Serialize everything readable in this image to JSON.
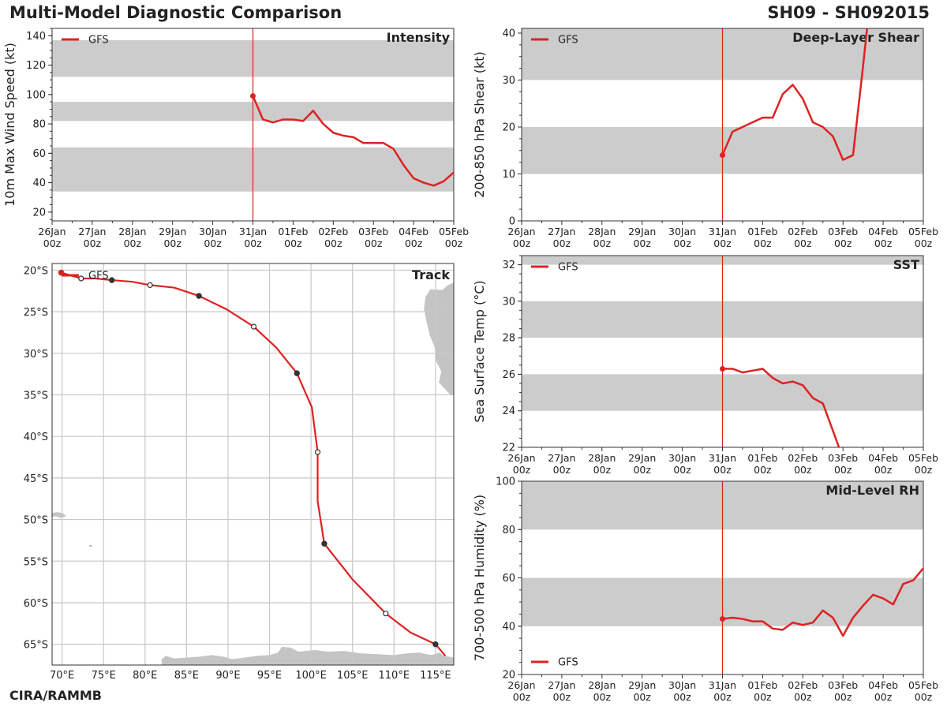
{
  "header": {
    "title": "Multi-Model Diagnostic Comparison",
    "storm_id": "SH09 - SH092015",
    "footer": "CIRA/RAMMB"
  },
  "colors": {
    "gfs": "#dd2222",
    "band": "#cccccc",
    "grid": "#c8c8c8",
    "land": "#c4c4c4",
    "axis": "#333333"
  },
  "time_ticks": [
    "26Jan\n00z",
    "27Jan\n00z",
    "28Jan\n00z",
    "29Jan\n00z",
    "30Jan\n00z",
    "31Jan\n00z",
    "01Feb\n00z",
    "02Feb\n00z",
    "03Feb\n00z",
    "04Feb\n00z",
    "05Feb\n00z"
  ],
  "chart_data": [
    {
      "id": "intensity",
      "type": "line",
      "title": "Intensity",
      "ylabel": "10m Max Wind Speed (kt)",
      "xlim": [
        0,
        10
      ],
      "ylim": [
        14,
        145
      ],
      "yticks": [
        20,
        40,
        60,
        80,
        100,
        120,
        140
      ],
      "bands": [
        [
          34,
          64
        ],
        [
          82,
          95
        ],
        [
          112,
          137
        ]
      ],
      "init_day": 5,
      "legend": "GFS",
      "series": [
        {
          "name": "GFS",
          "x": [
            5,
            5.25,
            5.5,
            5.75,
            6,
            6.25,
            6.5,
            6.75,
            7,
            7.25,
            7.5,
            7.75,
            8,
            8.25,
            8.5,
            8.75,
            9,
            9.25,
            9.5,
            9.75,
            10
          ],
          "y": [
            99,
            83,
            81,
            83,
            83,
            82,
            89,
            80,
            74,
            72,
            71,
            67,
            67,
            67,
            63,
            52,
            43,
            40,
            38,
            41,
            47
          ]
        }
      ]
    },
    {
      "id": "shear",
      "type": "line",
      "title": "Deep-Layer Shear",
      "ylabel": "200-850 hPa Shear (kt)",
      "xlim": [
        0,
        10
      ],
      "ylim": [
        0,
        41
      ],
      "yticks": [
        0,
        10,
        20,
        30,
        40
      ],
      "bands": [
        [
          10,
          20
        ],
        [
          30,
          41
        ]
      ],
      "init_day": 5,
      "legend": "GFS",
      "series": [
        {
          "name": "GFS",
          "x": [
            5,
            5.25,
            5.5,
            5.75,
            6,
            6.25,
            6.5,
            6.75,
            7,
            7.25,
            7.5,
            7.75,
            8,
            8.25,
            8.5,
            8.6
          ],
          "y": [
            14,
            19,
            20,
            21,
            22,
            22,
            27,
            29,
            26,
            21,
            20,
            18,
            13,
            14,
            33,
            41
          ]
        }
      ]
    },
    {
      "id": "sst",
      "type": "line",
      "title": "SST",
      "ylabel": "Sea Surface Temp (°C)",
      "xlim": [
        0,
        10
      ],
      "ylim": [
        22,
        32.5
      ],
      "yticks": [
        22,
        24,
        26,
        28,
        30,
        32
      ],
      "bands": [
        [
          24,
          26
        ],
        [
          28,
          30
        ],
        [
          32,
          32.5
        ]
      ],
      "init_day": 5,
      "legend": "GFS",
      "series": [
        {
          "name": "GFS",
          "x": [
            5,
            5.25,
            5.5,
            5.75,
            6,
            6.25,
            6.5,
            6.75,
            7,
            7.25,
            7.5,
            7.9
          ],
          "y": [
            26.3,
            26.3,
            26.1,
            26.2,
            26.3,
            25.8,
            25.5,
            25.6,
            25.4,
            24.7,
            24.4,
            22
          ]
        }
      ]
    },
    {
      "id": "rh",
      "type": "line",
      "title": "Mid-Level RH",
      "ylabel": "700-500 hPa Humidity (%)",
      "xlim": [
        0,
        10
      ],
      "ylim": [
        20,
        100
      ],
      "yticks": [
        20,
        40,
        60,
        80,
        100
      ],
      "bands": [
        [
          40,
          60
        ],
        [
          80,
          100
        ]
      ],
      "init_day": 5,
      "legend": "GFS",
      "series": [
        {
          "name": "GFS",
          "x": [
            5,
            5.25,
            5.5,
            5.75,
            6,
            6.25,
            6.5,
            6.75,
            7,
            7.25,
            7.5,
            7.75,
            8,
            8.25,
            8.5,
            8.75,
            9,
            9.25,
            9.5,
            9.75,
            10
          ],
          "y": [
            43,
            43.5,
            43,
            42,
            42,
            39,
            38.5,
            41.5,
            40.5,
            41.5,
            46.5,
            43.5,
            36,
            43.5,
            48.5,
            53,
            51.5,
            49,
            57.5,
            59,
            64
          ]
        }
      ]
    },
    {
      "id": "track",
      "type": "line",
      "title": "Track",
      "legend": "GFS",
      "xlim": [
        68.8,
        117.2
      ],
      "ylim": [
        -67.5,
        -19.2
      ],
      "xticks": [
        70,
        75,
        80,
        85,
        90,
        95,
        100,
        105,
        110,
        115
      ],
      "xticklabels": [
        "70°E",
        "75°E",
        "80°E",
        "85°E",
        "90°E",
        "95°E",
        "100°E",
        "105°E",
        "110°E",
        "115°E"
      ],
      "yticks": [
        -20,
        -25,
        -30,
        -35,
        -40,
        -45,
        -50,
        -55,
        -60,
        -65
      ],
      "yticklabels": [
        "20°S",
        "25°S",
        "30°S",
        "35°S",
        "40°S",
        "45°S",
        "50°S",
        "55°S",
        "60°S",
        "65°S"
      ],
      "series": [
        {
          "name": "GFS",
          "lon": [
            69.9,
            72.3,
            74.0,
            76.0,
            78.5,
            80.6,
            83.5,
            86.5,
            89.8,
            93.1,
            95.8,
            98.3,
            100.1,
            100.8,
            100.8,
            101.6,
            105.0,
            109.0,
            112.0,
            115.0,
            116.2
          ],
          "lat": [
            -20.3,
            -21.0,
            -21.0,
            -21.2,
            -21.4,
            -21.8,
            -22.1,
            -23.1,
            -24.7,
            -26.8,
            -29.3,
            -32.4,
            -36.5,
            -41.9,
            -47.8,
            -52.9,
            -57.2,
            -61.3,
            -63.6,
            -65.0,
            -66.4
          ]
        }
      ],
      "filled_markers": [
        [
          69.9,
          -20.3
        ],
        [
          76.0,
          -21.2
        ],
        [
          86.5,
          -23.1
        ],
        [
          98.3,
          -32.4
        ],
        [
          101.6,
          -52.9
        ],
        [
          115.0,
          -65.0
        ]
      ],
      "open_markers": [
        [
          72.3,
          -21.0
        ],
        [
          80.6,
          -21.8
        ],
        [
          93.1,
          -26.8
        ],
        [
          100.8,
          -41.9
        ],
        [
          109.0,
          -61.3
        ]
      ]
    }
  ]
}
